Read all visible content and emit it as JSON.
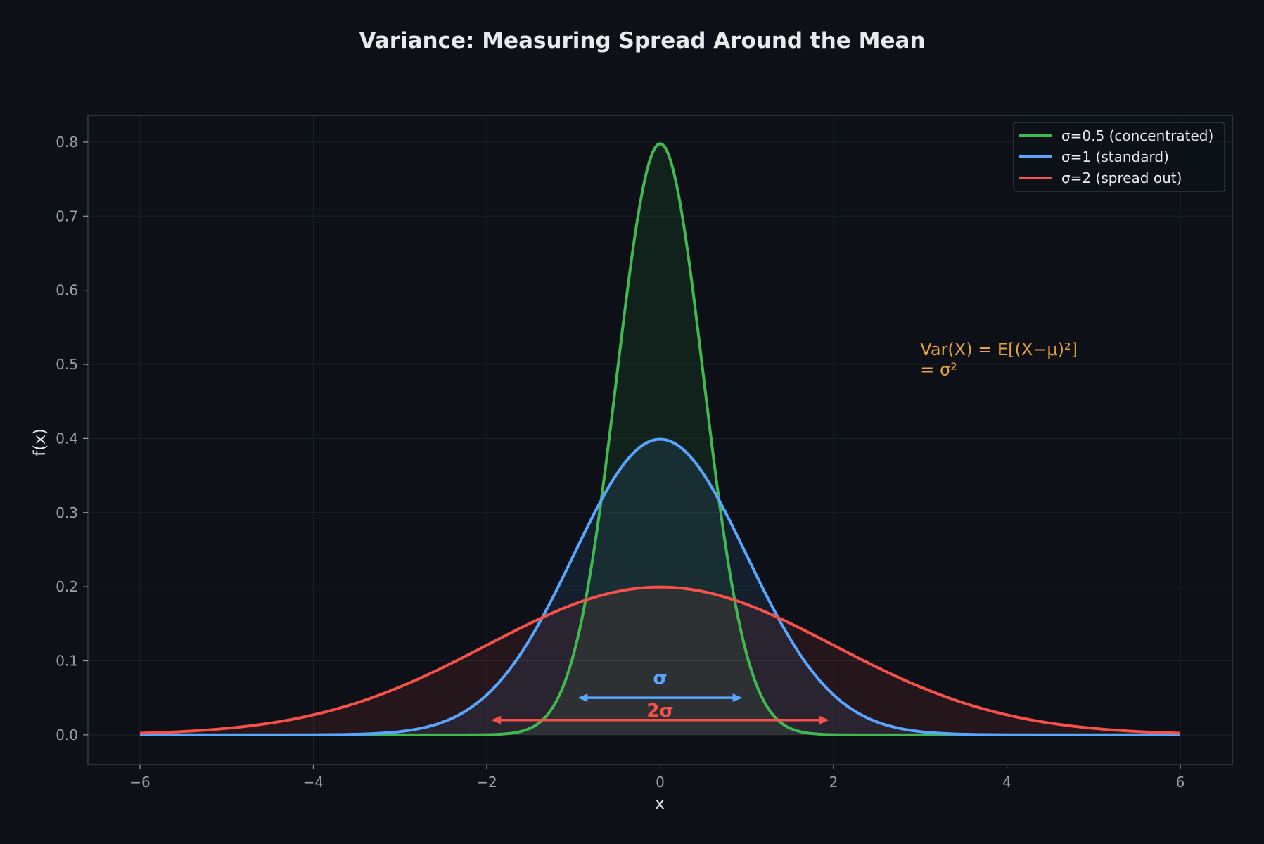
{
  "colors": {
    "background": "#0d1017",
    "axes_face": "#0d1017",
    "spine": "#3a3f47",
    "grid": "#1c2129",
    "tick_text": "#9aa0a6",
    "label_text": "#e8eaed",
    "annotation": "#e8a33a"
  },
  "chart_data": {
    "type": "line",
    "title": "Variance: Measuring Spread Around the Mean",
    "xlabel": "x",
    "ylabel": "f(x)",
    "xlim": [
      -6.6,
      6.6
    ],
    "ylim": [
      -0.04,
      0.836
    ],
    "xticks": [
      -6,
      -4,
      -2,
      0,
      2,
      4,
      6
    ],
    "xtick_labels": [
      "−6",
      "−4",
      "−2",
      "0",
      "2",
      "4",
      "6"
    ],
    "yticks": [
      0.0,
      0.1,
      0.2,
      0.3,
      0.4,
      0.5,
      0.6,
      0.7,
      0.8
    ],
    "ytick_labels": [
      "0.0",
      "0.1",
      "0.2",
      "0.3",
      "0.4",
      "0.5",
      "0.6",
      "0.7",
      "0.8"
    ],
    "grid": true,
    "legend_position": "top-right",
    "x_range": [
      -6,
      6
    ],
    "series": [
      {
        "name": "σ=0.5 (concentrated)",
        "mu": 0,
        "sigma": 0.5,
        "color": "#3fb950",
        "peak": 0.798
      },
      {
        "name": "σ=1 (standard)",
        "mu": 0,
        "sigma": 1,
        "color": "#58a6ff",
        "peak": 0.399
      },
      {
        "name": "σ=2 (spread out)",
        "mu": 0,
        "sigma": 2,
        "color": "#f85149",
        "peak": 0.199
      }
    ],
    "annotations": [
      {
        "text": "Var(X) = E[(X−μ)²]",
        "x": 3.0,
        "y": 0.52,
        "color": "#e8a33a"
      },
      {
        "text": "= σ²",
        "x": 3.0,
        "y": 0.493,
        "color": "#e8a33a"
      }
    ],
    "arrows": [
      {
        "label": "σ",
        "x_from": -0.95,
        "x_to": 0.95,
        "y": 0.05,
        "label_y": 0.078,
        "color": "#58a6ff"
      },
      {
        "label": "2σ",
        "x_from": -1.95,
        "x_to": 1.95,
        "y": 0.02,
        "label_y": 0.034,
        "color": "#f85149"
      }
    ]
  }
}
